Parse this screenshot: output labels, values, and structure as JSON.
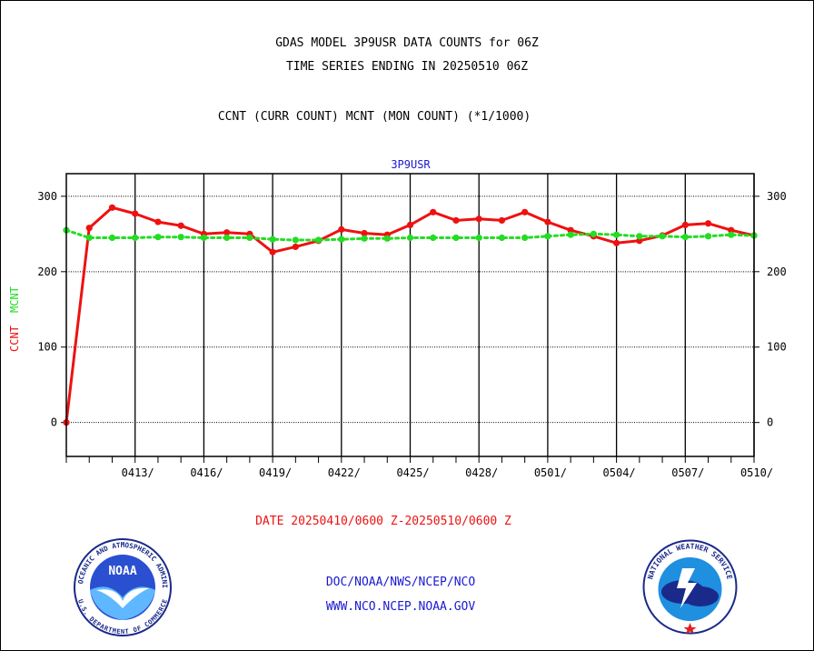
{
  "titles": {
    "line1": "GDAS MODEL 3P9USR DATA COUNTS for 06Z",
    "line2": "TIME SERIES ENDING IN 20250510 06Z",
    "line3": "CCNT (CURR COUNT) MCNT (MON COUNT) (*1/1000)"
  },
  "date_range": "DATE 20250410/0600 Z-20250510/0600 Z",
  "footer": {
    "doc": "DOC/NOAA/NWS/NCEP/NCO",
    "url": "WWW.NCO.NCEP.NOAA.GOV"
  },
  "logos": {
    "noaa_text": "NOAA",
    "noaa_ring": "NATIONAL OCEANIC AND ATMOSPHERIC ADMINISTRATION",
    "noaa_bottom": "U.S. DEPARTMENT OF COMMERCE",
    "nws_ring": "NATIONAL WEATHER SERVICE"
  },
  "chart_data": {
    "type": "line",
    "title": "3P9USR",
    "ylabel_ccnt": "CCNT",
    "ylabel_mcnt": "MCNT",
    "ylim": [
      -45,
      330
    ],
    "xlim": [
      0,
      30
    ],
    "yticks": [
      0,
      100,
      200,
      300
    ],
    "xticks": [
      {
        "pos": 3,
        "label": "0413/"
      },
      {
        "pos": 6,
        "label": "0416/"
      },
      {
        "pos": 9,
        "label": "0419/"
      },
      {
        "pos": 12,
        "label": "0422/"
      },
      {
        "pos": 15,
        "label": "0425/"
      },
      {
        "pos": 18,
        "label": "0428/"
      },
      {
        "pos": 21,
        "label": "0501/"
      },
      {
        "pos": 24,
        "label": "0504/"
      },
      {
        "pos": 27,
        "label": "0507/"
      },
      {
        "pos": 30,
        "label": "0510/"
      }
    ],
    "series": [
      {
        "name": "CCNT",
        "color": "#ee1111",
        "style": "solid",
        "x": [
          0,
          1,
          2,
          3,
          4,
          5,
          6,
          7,
          8,
          9,
          10,
          11,
          12,
          13,
          14,
          15,
          16,
          17,
          18,
          19,
          20,
          21,
          22,
          23,
          24,
          25,
          26,
          27,
          28,
          29,
          30
        ],
        "values": [
          0,
          258,
          285,
          277,
          266,
          261,
          250,
          252,
          250,
          226,
          233,
          241,
          256,
          251,
          249,
          262,
          279,
          268,
          270,
          268,
          279,
          266,
          255,
          247,
          238,
          241,
          248,
          262,
          264,
          255,
          248
        ]
      },
      {
        "name": "MCNT",
        "color": "#22dd22",
        "style": "dotted",
        "x": [
          0,
          1,
          2,
          3,
          4,
          5,
          6,
          7,
          8,
          9,
          10,
          11,
          12,
          13,
          14,
          15,
          16,
          17,
          18,
          19,
          20,
          21,
          22,
          23,
          24,
          25,
          26,
          27,
          28,
          29,
          30
        ],
        "values": [
          255,
          245,
          245,
          245,
          246,
          246,
          245,
          245,
          245,
          243,
          242,
          242,
          243,
          244,
          244,
          245,
          245,
          245,
          245,
          245,
          245,
          247,
          249,
          250,
          249,
          247,
          247,
          246,
          247,
          249,
          248
        ]
      }
    ]
  }
}
